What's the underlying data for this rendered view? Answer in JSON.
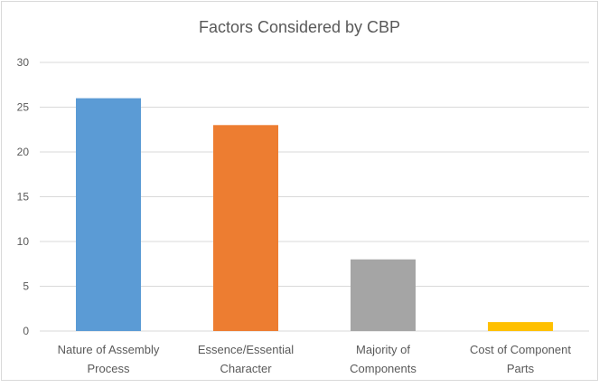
{
  "chart_data": {
    "type": "bar",
    "title": "Factors Considered by CBP",
    "xlabel": "",
    "ylabel": "",
    "categories": [
      "Nature of Assembly Process",
      "Essence/Essential Character",
      "Majority of Components",
      "Cost of Component Parts"
    ],
    "category_lines": [
      [
        "Nature of Assembly",
        "Process"
      ],
      [
        "Essence/Essential",
        "Character"
      ],
      [
        "Majority of",
        "Components"
      ],
      [
        "Cost of Component",
        "Parts"
      ]
    ],
    "values": [
      26,
      23,
      8,
      1
    ],
    "colors": [
      "#5b9bd5",
      "#ed7d31",
      "#a5a5a5",
      "#ffc000"
    ],
    "ylim": [
      0,
      30
    ],
    "yticks": [
      0,
      5,
      10,
      15,
      20,
      25,
      30
    ],
    "grid": true,
    "legend": "none",
    "gridline_color": "#d9d9d9",
    "text_color": "#595959"
  }
}
